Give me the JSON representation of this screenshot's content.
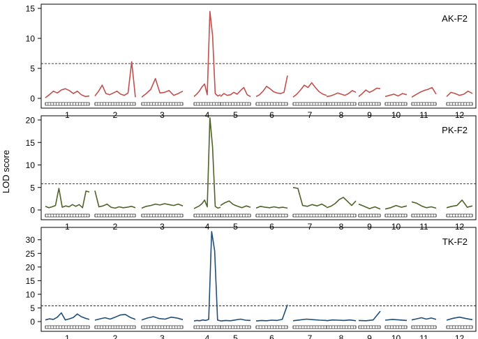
{
  "chart_data": {
    "type": "line",
    "ylabel": "LOD score",
    "chromosomes": [
      "1",
      "2",
      "3",
      "4",
      "5",
      "6",
      "7",
      "8",
      "9",
      "10",
      "11",
      "12"
    ],
    "significance_threshold": 5.8,
    "panels": [
      {
        "label": "AK-F2",
        "color": "#c0504d",
        "ylim": [
          0,
          15
        ],
        "yticks": [
          "0",
          "5",
          "10",
          "15"
        ],
        "series": [
          [
            0.1,
            0.6,
            1.2,
            0.9,
            1.4,
            1.6,
            1.3,
            0.8,
            1.2,
            0.6,
            0.3,
            0.4
          ],
          [
            0.4,
            1.2,
            2.2,
            0.8,
            0.6,
            0.9,
            1.2,
            0.7,
            0.5,
            0.9,
            6.1,
            0.2
          ],
          [
            0.2,
            0.8,
            1.5,
            3.3,
            0.9,
            1.0,
            1.3,
            0.5,
            0.8,
            1.2
          ],
          [
            0.3,
            0.7,
            1.2,
            1.9,
            2.4,
            0.6,
            14.5,
            10.5,
            0.8,
            0.4,
            0.6
          ],
          [
            0.3,
            0.8,
            0.5,
            0.6,
            1.0,
            0.7,
            1.3,
            1.8,
            0.6,
            0.3
          ],
          [
            0.3,
            0.6,
            1.2,
            2.0,
            1.6,
            1.1,
            0.9,
            0.8,
            1.0,
            3.8
          ],
          [
            0.2,
            0.7,
            1.4,
            2.2,
            1.8,
            2.6,
            1.8,
            1.1,
            0.7,
            0.5
          ],
          [
            0.3,
            0.4,
            0.6,
            0.9,
            0.7,
            0.5,
            0.8,
            1.3,
            1.0
          ],
          [
            0.3,
            0.8,
            1.4,
            1.0,
            1.3,
            1.7,
            1.6
          ],
          [
            0.3,
            0.5,
            0.7,
            0.4,
            0.8,
            0.6
          ],
          [
            0.2,
            0.6,
            1.0,
            1.3,
            1.5,
            1.8,
            0.7
          ],
          [
            0.3,
            1.0,
            0.8,
            0.5,
            0.7,
            1.2,
            0.8
          ]
        ]
      },
      {
        "label": "PK-F2",
        "color": "#4f6228",
        "ylim": [
          0,
          20
        ],
        "yticks": [
          "0",
          "5",
          "10",
          "15",
          "20"
        ],
        "series": [
          [
            0.8,
            0.5,
            0.7,
            1.0,
            4.8,
            0.6,
            0.9,
            0.7,
            1.2,
            0.8,
            1.2,
            0.5,
            4.2,
            4.0
          ],
          [
            4.3,
            0.7,
            0.9,
            1.3,
            0.6,
            0.4,
            0.7,
            0.5,
            0.6,
            0.8,
            0.5
          ],
          [
            0.4,
            0.8,
            1.0,
            1.3,
            1.1,
            1.4,
            1.2,
            1.0,
            1.3,
            0.9
          ],
          [
            0.3,
            0.6,
            0.9,
            1.4,
            2.2,
            0.7,
            20.5,
            14.0,
            0.8,
            0.4,
            0.6
          ],
          [
            1.0,
            1.6,
            2.0,
            1.2,
            0.8,
            0.5,
            0.9,
            0.6
          ],
          [
            0.4,
            0.8,
            0.6,
            0.5,
            0.7,
            0.5,
            0.6,
            0.4
          ],
          [
            5.0,
            4.8,
            1.0,
            0.8,
            1.2,
            0.9,
            1.3,
            0.7
          ],
          [
            0.5,
            0.8,
            1.4,
            2.3,
            2.8,
            1.9,
            1.0,
            2.0
          ],
          [
            1.3,
            0.8,
            0.3,
            0.7,
            0.2
          ],
          [
            0.2,
            0.5,
            1.0,
            0.6,
            0.9
          ],
          [
            1.8,
            1.5,
            0.9,
            0.5,
            0.7,
            0.4
          ],
          [
            0.5,
            0.8,
            1.0,
            2.2,
            0.6,
            0.9
          ]
        ]
      },
      {
        "label": "TK-F2",
        "color": "#1f4e79",
        "ylim": [
          0,
          33
        ],
        "yticks": [
          "0",
          "5",
          "10",
          "15",
          "20",
          "25",
          "30"
        ],
        "series": [
          [
            0.6,
            1.0,
            0.8,
            1.6,
            3.2,
            0.6,
            1.0,
            1.5,
            2.8,
            1.8,
            1.2,
            0.8
          ],
          [
            0.5,
            1.0,
            1.4,
            0.9,
            1.6,
            2.4,
            2.6,
            1.5,
            0.8
          ],
          [
            0.6,
            1.3,
            1.8,
            1.1,
            0.9,
            1.6,
            1.3,
            0.7
          ],
          [
            0.2,
            0.4,
            0.3,
            0.6,
            0.4,
            0.8,
            33.0,
            26.0,
            0.5,
            0.3
          ],
          [
            0.2,
            0.4,
            0.3,
            0.6,
            0.9,
            0.5,
            0.4
          ],
          [
            0.2,
            0.4,
            0.3,
            0.5,
            0.4,
            0.8,
            6.2
          ],
          [
            0.3,
            0.6,
            0.9,
            0.7,
            0.5,
            0.4
          ],
          [
            0.3,
            0.6,
            0.5,
            0.4,
            0.6,
            0.3
          ],
          [
            0.4,
            0.3,
            0.6,
            3.8
          ],
          [
            0.5,
            0.8,
            0.6,
            0.4
          ],
          [
            0.6,
            1.0,
            1.4,
            0.9,
            1.3,
            0.8
          ],
          [
            0.5,
            1.2,
            1.6,
            1.1,
            0.7
          ]
        ]
      }
    ]
  }
}
